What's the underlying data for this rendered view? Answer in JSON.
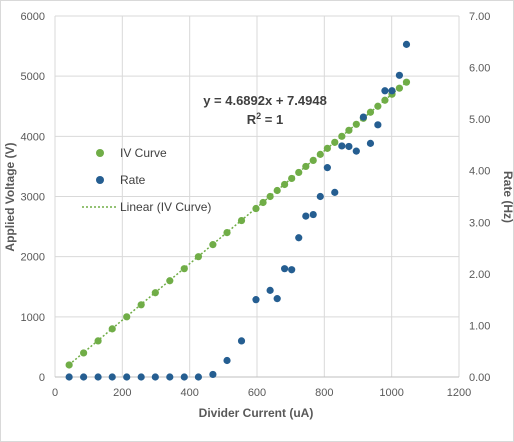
{
  "chart_data": {
    "type": "scatter",
    "xlabel": "Divider Current (uA)",
    "ylabel": "Applied Voltage (V)",
    "y2label": "Rate (Hz)",
    "xlim": [
      0,
      1200
    ],
    "ylim": [
      0,
      6000
    ],
    "y2lim": [
      0,
      7
    ],
    "xticks": [
      "0",
      "200",
      "400",
      "600",
      "800",
      "1000",
      "1200"
    ],
    "yticks": [
      "0",
      "1000",
      "2000",
      "3000",
      "4000",
      "5000",
      "6000"
    ],
    "y2ticks": [
      "0.00",
      "1.00",
      "2.00",
      "3.00",
      "4.00",
      "5.00",
      "6.00",
      "7.00"
    ],
    "grid": "both",
    "legend_position": "left",
    "legend": [
      "IV Curve",
      "Rate",
      "Linear (IV Curve)"
    ],
    "colors": {
      "iv": "#70ad47",
      "rate": "#255e91",
      "trend": "#70ad47"
    },
    "annotations": {
      "equation": "y = 4.6892x + 7.4948",
      "r2_prefix": "R",
      "r2_sup": "2",
      "r2_suffix": " = 1"
    },
    "series": [
      {
        "name": "IV Curve",
        "axis": "left",
        "x": [
          42,
          85,
          128,
          170,
          213,
          256,
          298,
          341,
          384,
          426,
          469,
          511,
          554,
          597,
          618,
          639,
          660,
          682,
          703,
          724,
          745,
          767,
          788,
          809,
          831,
          852,
          873,
          895,
          916,
          937,
          959,
          980,
          1001,
          1023,
          1044
        ],
        "y": [
          200,
          400,
          600,
          800,
          1000,
          1200,
          1400,
          1600,
          1800,
          2000,
          2200,
          2400,
          2600,
          2800,
          2900,
          3000,
          3100,
          3200,
          3300,
          3400,
          3500,
          3600,
          3700,
          3800,
          3900,
          4000,
          4100,
          4200,
          4300,
          4400,
          4500,
          4600,
          4700,
          4800,
          4900
        ]
      },
      {
        "name": "Rate",
        "axis": "right",
        "x": [
          42,
          85,
          128,
          170,
          213,
          256,
          298,
          341,
          384,
          426,
          469,
          511,
          554,
          597,
          639,
          660,
          682,
          703,
          724,
          745,
          767,
          788,
          809,
          831,
          852,
          873,
          895,
          916,
          937,
          959,
          980,
          1001,
          1023,
          1044
        ],
        "y": [
          0,
          0,
          0,
          0,
          0,
          0,
          0,
          0,
          0,
          0,
          0.05,
          0.32,
          0.7,
          1.5,
          1.68,
          1.52,
          2.1,
          2.08,
          2.7,
          3.12,
          3.15,
          3.5,
          4.06,
          3.58,
          4.48,
          4.47,
          4.38,
          5.04,
          4.53,
          4.89,
          5.55,
          5.55,
          5.85,
          6.45
        ]
      }
    ],
    "trendline": {
      "name": "Linear (IV Curve)",
      "slope": 4.6892,
      "intercept": 7.4948,
      "x_from": 42,
      "x_to": 1044
    }
  }
}
